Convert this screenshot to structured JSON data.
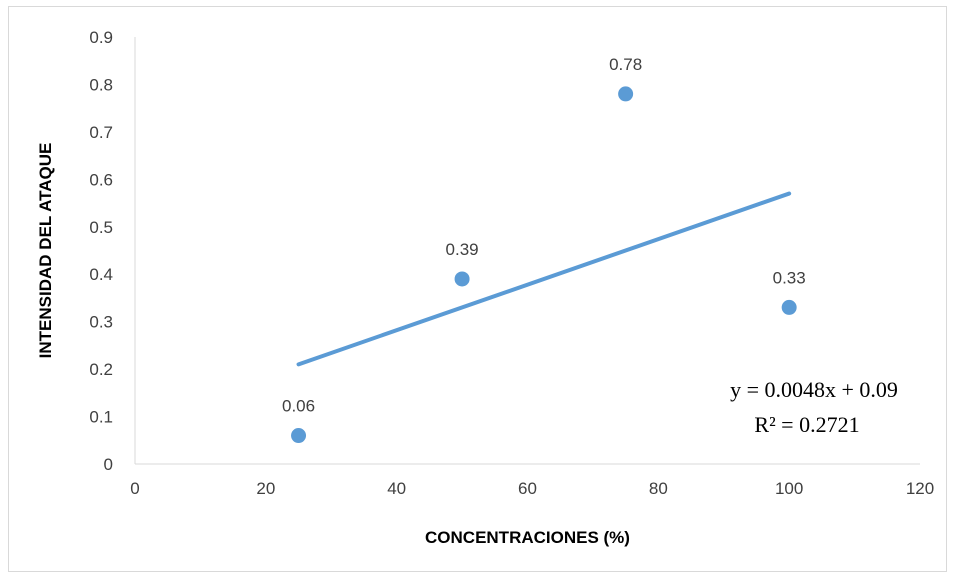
{
  "chart_data": {
    "type": "scatter",
    "title": "",
    "xlabel": "CONCENTRACIONES (%)",
    "ylabel": "INTENSIDAD DEL ATAQUE",
    "xlim": [
      0,
      120
    ],
    "ylim": [
      0,
      0.9
    ],
    "x_ticks": [
      "0",
      "20",
      "40",
      "60",
      "80",
      "100",
      "120"
    ],
    "y_ticks": [
      "0",
      "0.1",
      "0.2",
      "0.3",
      "0.4",
      "0.5",
      "0.6",
      "0.7",
      "0.8",
      "0.9"
    ],
    "grid": false,
    "series": [
      {
        "x": [
          25,
          50,
          75,
          100
        ],
        "y": [
          0.06,
          0.39,
          0.78,
          0.33
        ],
        "labels": [
          "0.06",
          "0.39",
          "0.78",
          "0.33"
        ],
        "color": "#5b9bd5"
      }
    ],
    "trendline": {
      "type": "linear",
      "slope": 0.0048,
      "intercept": 0.09,
      "x_range": [
        25,
        100
      ],
      "color": "#5b9bd5",
      "equation": "y = 0.0048x + 0.09",
      "r_squared": "R² = 0.2721"
    }
  }
}
